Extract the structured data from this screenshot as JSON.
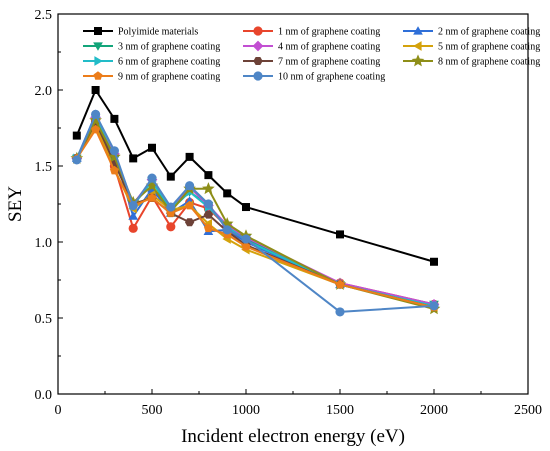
{
  "chart_data": {
    "type": "line",
    "title": "",
    "xlabel": "Incident electron energy (eV)",
    "ylabel": "SEY",
    "xlim": [
      0,
      2500
    ],
    "ylim": [
      0.0,
      2.5
    ],
    "xticks": [
      0,
      500,
      1000,
      1500,
      2000,
      2500
    ],
    "yticks": [
      0.0,
      0.5,
      1.0,
      1.5,
      2.0,
      2.5
    ],
    "xtick_labels": [
      "0",
      "500",
      "1000",
      "1500",
      "2000",
      "2500"
    ],
    "ytick_labels": [
      "0.0",
      "0.5",
      "1.0",
      "1.5",
      "2.0",
      "2.5"
    ],
    "grid": false,
    "legend_position": "top",
    "x": [
      100,
      200,
      300,
      400,
      500,
      600,
      700,
      800,
      900,
      1000,
      1500,
      2000
    ],
    "series": [
      {
        "name": "Polyimide materials",
        "color": "#000000",
        "marker": "square",
        "values": [
          1.7,
          2.0,
          1.81,
          1.55,
          1.62,
          1.43,
          1.56,
          1.44,
          1.32,
          1.23,
          1.05,
          0.87
        ]
      },
      {
        "name": "1 nm of graphene coating",
        "color": "#e8452c",
        "marker": "circle",
        "values": [
          1.55,
          1.8,
          1.5,
          1.09,
          1.3,
          1.1,
          1.26,
          1.22,
          1.1,
          1.02,
          0.73,
          0.59
        ]
      },
      {
        "name": "2 nm of graphene coating",
        "color": "#2f6fd8",
        "marker": "triangle-up",
        "values": [
          1.55,
          1.84,
          1.58,
          1.17,
          1.35,
          1.19,
          1.27,
          1.07,
          1.08,
          1.0,
          0.72,
          0.59
        ]
      },
      {
        "name": "3 nm of graphene coating",
        "color": "#13a57a",
        "marker": "triangle-down",
        "values": [
          1.55,
          1.8,
          1.56,
          1.25,
          1.4,
          1.21,
          1.33,
          1.24,
          1.1,
          1.02,
          0.72,
          0.59
        ]
      },
      {
        "name": "4 nm of graphene coating",
        "color": "#c24fd2",
        "marker": "diamond",
        "values": [
          1.55,
          1.82,
          1.58,
          1.25,
          1.41,
          1.22,
          1.36,
          1.24,
          1.11,
          1.03,
          0.73,
          0.59
        ]
      },
      {
        "name": "5 nm of graphene coating",
        "color": "#d4a20c",
        "marker": "triangle-left",
        "values": [
          1.55,
          1.77,
          1.48,
          1.22,
          1.31,
          1.21,
          1.24,
          1.12,
          1.02,
          0.95,
          0.72,
          0.57
        ]
      },
      {
        "name": "6 nm of graphene coating",
        "color": "#22bcc8",
        "marker": "triangle-right",
        "values": [
          1.55,
          1.82,
          1.56,
          1.24,
          1.4,
          1.22,
          1.33,
          1.23,
          1.1,
          1.01,
          0.72,
          0.58
        ]
      },
      {
        "name": "7 nm of graphene coating",
        "color": "#6d4238",
        "marker": "hexagon",
        "values": [
          1.55,
          1.79,
          1.52,
          1.25,
          1.29,
          1.19,
          1.13,
          1.18,
          1.07,
          0.98,
          0.72,
          0.57
        ]
      },
      {
        "name": "8 nm of graphene coating",
        "color": "#8e8e18",
        "marker": "star",
        "values": [
          1.55,
          1.8,
          1.56,
          1.26,
          1.37,
          1.2,
          1.35,
          1.35,
          1.12,
          1.04,
          0.72,
          0.56
        ]
      },
      {
        "name": "9 nm of graphene coating",
        "color": "#ec7d1a",
        "marker": "pentagon",
        "values": [
          1.55,
          1.74,
          1.47,
          1.24,
          1.29,
          1.19,
          1.24,
          1.09,
          1.05,
          0.97,
          0.72,
          0.57
        ]
      },
      {
        "name": "10 nm of graphene coating",
        "color": "#4f86c6",
        "marker": "circle",
        "values": [
          1.54,
          1.84,
          1.6,
          1.24,
          1.42,
          1.23,
          1.37,
          1.25,
          1.08,
          1.02,
          0.54,
          0.58
        ]
      }
    ]
  }
}
